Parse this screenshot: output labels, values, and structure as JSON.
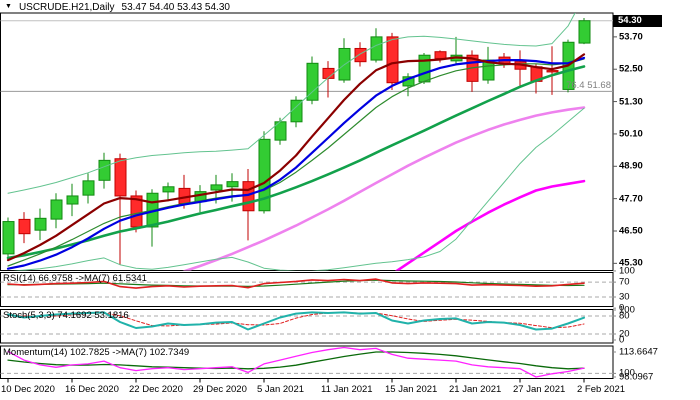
{
  "title": {
    "triangle_icon": "▼",
    "symbol_timeframe": "USCRUDE.H21,Daily",
    "ohlc_text": "53.47 54.40 53.43 54.30"
  },
  "colors": {
    "background": "#ffffff",
    "border": "#000000",
    "bull_fill": "#33cc33",
    "bull_stroke": "#128a12",
    "bear_fill": "#ff2a2a",
    "bear_stroke": "#c00000",
    "bb_band": "#63c38f",
    "bb_middle": "#2e8b2e",
    "ma_fast": "#8b0000",
    "ma_mid": "#0000e0",
    "ma_slow": "#12a14b",
    "ma_violet": "#ee82ee",
    "ma_magenta": "#ff00ff",
    "rsi_line": "#e02020",
    "rsi_ma": "#1a7a1a",
    "stoch_k": "#20b2aa",
    "stoch_d": "#e02020",
    "mom_line": "#ff22ff",
    "mom_ma": "#0a6a0a",
    "level_dash": "#aaaaaa",
    "fib_line": "#999999",
    "price_line": "#c0c0c0",
    "current_tag_bg": "#000000",
    "current_tag_text": "#ffffff"
  },
  "chart_data": {
    "type": "candlestick",
    "symbol": "USCRUDE.H21",
    "timeframe": "Daily",
    "title_ohlc": {
      "open": 53.47,
      "high": 54.4,
      "low": 53.43,
      "close": 54.3
    },
    "ylim": [
      45.05,
      54.6
    ],
    "dates": [
      "10 Dec 2020",
      "11 Dec 2020",
      "14 Dec 2020",
      "15 Dec 2020",
      "16 Dec 2020",
      "17 Dec 2020",
      "18 Dec 2020",
      "21 Dec 2020",
      "22 Dec 2020",
      "23 Dec 2020",
      "24 Dec 2020",
      "28 Dec 2020",
      "29 Dec 2020",
      "30 Dec 2020",
      "31 Dec 2020",
      "4 Jan 2021",
      "5 Jan 2021",
      "6 Jan 2021",
      "7 Jan 2021",
      "8 Jan 2021",
      "11 Jan 2021",
      "12 Jan 2021",
      "13 Jan 2021",
      "14 Jan 2021",
      "15 Jan 2021",
      "18 Jan 2021",
      "19 Jan 2021",
      "20 Jan 2021",
      "21 Jan 2021",
      "22 Jan 2021",
      "25 Jan 2021",
      "26 Jan 2021",
      "27 Jan 2021",
      "28 Jan 2021",
      "29 Jan 2021",
      "1 Feb 2021",
      "2 Feb 2021"
    ],
    "open": [
      45.65,
      46.93,
      46.53,
      46.94,
      47.5,
      47.83,
      48.38,
      49.18,
      47.8,
      46.65,
      47.95,
      48.08,
      47.59,
      48.02,
      48.14,
      48.33,
      47.25,
      49.87,
      50.55,
      51.35,
      52.53,
      52.1,
      53.27,
      52.84,
      53.7,
      51.88,
      52.03,
      53.15,
      52.81,
      53.02,
      52.1,
      52.95,
      52.78,
      52.59,
      52.45,
      51.75,
      53.47
    ],
    "high": [
      47.0,
      47.2,
      47.33,
      47.9,
      48.25,
      48.64,
      49.4,
      49.37,
      48.0,
      48.05,
      48.3,
      48.58,
      48.2,
      48.58,
      48.64,
      48.8,
      50.2,
      50.7,
      51.5,
      52.97,
      52.8,
      53.65,
      53.5,
      54.02,
      53.85,
      52.35,
      53.1,
      53.2,
      53.7,
      53.2,
      53.33,
      53.1,
      53.2,
      52.7,
      53.35,
      53.6,
      54.4
    ],
    "low": [
      45.4,
      46.05,
      46.16,
      46.6,
      47.05,
      47.52,
      48.07,
      45.25,
      46.45,
      45.92,
      47.6,
      47.33,
      47.2,
      47.52,
      47.59,
      46.15,
      47.15,
      49.7,
      50.35,
      51.2,
      51.45,
      52.0,
      52.6,
      52.75,
      51.73,
      51.5,
      51.95,
      52.75,
      52.7,
      51.66,
      51.96,
      52.55,
      51.85,
      51.6,
      51.55,
      51.64,
      53.43
    ],
    "close": [
      46.85,
      46.4,
      46.97,
      47.65,
      47.8,
      48.36,
      49.12,
      47.8,
      46.65,
      47.9,
      48.14,
      47.52,
      47.96,
      48.21,
      48.33,
      47.25,
      49.9,
      50.55,
      51.35,
      52.72,
      52.16,
      53.27,
      52.78,
      53.7,
      52.0,
      52.22,
      53.02,
      52.9,
      53.02,
      52.05,
      52.84,
      52.7,
      52.5,
      52.05,
      52.4,
      53.5,
      54.3
    ],
    "overlays": {
      "bollinger_upper": [
        47.9,
        48.02,
        48.15,
        48.3,
        48.48,
        48.66,
        48.88,
        49.1,
        49.22,
        49.3,
        49.35,
        49.4,
        49.44,
        49.46,
        49.5,
        49.55,
        50.05,
        50.55,
        51.1,
        51.65,
        52.18,
        52.66,
        53.06,
        53.38,
        53.6,
        53.7,
        53.72,
        53.68,
        53.62,
        53.55,
        53.48,
        53.42,
        53.38,
        53.36,
        53.45,
        54.1,
        55.2
      ],
      "bollinger_middle": [
        45.2,
        45.42,
        45.65,
        45.9,
        46.18,
        46.48,
        46.78,
        47.02,
        47.15,
        47.26,
        47.4,
        47.52,
        47.62,
        47.72,
        47.8,
        47.85,
        48.0,
        48.3,
        48.68,
        49.12,
        49.58,
        50.08,
        50.58,
        51.08,
        51.48,
        51.8,
        52.05,
        52.26,
        52.44,
        52.55,
        52.62,
        52.66,
        52.7,
        52.7,
        52.66,
        52.72,
        52.88
      ],
      "bollinger_lower": [
        45.0,
        45.05,
        45.1,
        45.18,
        45.28,
        45.4,
        45.5,
        45.25,
        45.12,
        45.08,
        45.15,
        45.25,
        45.35,
        45.45,
        45.52,
        45.35,
        45.12,
        45.05,
        45.02,
        45.02,
        45.06,
        45.14,
        45.22,
        45.3,
        45.36,
        45.44,
        45.54,
        45.74,
        46.2,
        46.9,
        47.6,
        48.3,
        49.0,
        49.6,
        50.05,
        50.55,
        51.05
      ],
      "ma_fast_darkred": [
        45.42,
        45.68,
        45.98,
        46.32,
        46.72,
        47.12,
        47.52,
        47.72,
        47.68,
        47.56,
        47.64,
        47.74,
        47.84,
        47.94,
        48.04,
        48.02,
        48.28,
        48.74,
        49.3,
        50.0,
        50.68,
        51.36,
        51.96,
        52.46,
        52.72,
        52.8,
        52.82,
        52.86,
        52.94,
        52.9,
        52.76,
        52.7,
        52.68,
        52.58,
        52.5,
        52.64,
        53.05
      ],
      "ma_blue": [
        45.1,
        45.22,
        45.4,
        45.62,
        45.9,
        46.22,
        46.58,
        46.88,
        47.08,
        47.22,
        47.36,
        47.48,
        47.58,
        47.68,
        47.78,
        47.84,
        48.04,
        48.4,
        48.85,
        49.4,
        49.95,
        50.5,
        51.02,
        51.52,
        51.88,
        52.14,
        52.35,
        52.55,
        52.68,
        52.75,
        52.8,
        52.84,
        52.84,
        52.8,
        52.72,
        52.72,
        52.92
      ],
      "ma_slow_green": [
        45.5,
        45.6,
        45.72,
        45.85,
        46.0,
        46.15,
        46.32,
        46.48,
        46.6,
        46.72,
        46.85,
        47.0,
        47.15,
        47.28,
        47.42,
        47.55,
        47.7,
        47.9,
        48.12,
        48.35,
        48.6,
        48.85,
        49.12,
        49.4,
        49.68,
        49.95,
        50.22,
        50.5,
        50.78,
        51.05,
        51.32,
        51.58,
        51.85,
        52.08,
        52.28,
        52.45,
        52.6
      ],
      "ma_violet": [
        null,
        null,
        null,
        null,
        null,
        null,
        null,
        null,
        null,
        44.65,
        44.82,
        45.0,
        45.2,
        45.42,
        45.65,
        45.9,
        46.15,
        46.42,
        46.7,
        47.0,
        47.3,
        47.62,
        47.95,
        48.28,
        48.6,
        48.92,
        49.22,
        49.5,
        49.78,
        50.02,
        50.25,
        50.45,
        50.62,
        50.78,
        50.9,
        51.0,
        51.08
      ],
      "ma_magenta": [
        null,
        null,
        null,
        null,
        null,
        null,
        null,
        null,
        null,
        null,
        null,
        null,
        null,
        null,
        null,
        null,
        null,
        null,
        null,
        null,
        null,
        null,
        null,
        null,
        44.9,
        45.3,
        45.7,
        46.1,
        46.5,
        46.85,
        47.18,
        47.48,
        47.75,
        48.0,
        48.15,
        48.25,
        48.35
      ]
    },
    "price_axis": {
      "ticks": [
        "53.70",
        "52.50",
        "51.30",
        "50.10",
        "48.90",
        "47.70",
        "46.50",
        "45.30"
      ],
      "tick_values": [
        53.7,
        52.5,
        51.3,
        50.1,
        48.9,
        47.7,
        46.5,
        45.3
      ],
      "current_label": "54.30",
      "current_value": 54.3
    },
    "fib_level": {
      "label": "76.4 51.68",
      "value": 51.68
    },
    "x_ticks": [
      {
        "label": "10 Dec 2020",
        "index": 0
      },
      {
        "label": "16 Dec 2020",
        "index": 4
      },
      {
        "label": "22 Dec 2020",
        "index": 8
      },
      {
        "label": "29 Dec 2020",
        "index": 12
      },
      {
        "label": "5 Jan 2021",
        "index": 16
      },
      {
        "label": "11 Jan 2021",
        "index": 20
      },
      {
        "label": "15 Jan 2021",
        "index": 24
      },
      {
        "label": "21 Jan 2021",
        "index": 28
      },
      {
        "label": "27 Jan 2021",
        "index": 32
      },
      {
        "label": "2 Feb 2021",
        "index": 36
      }
    ],
    "indicators": {
      "rsi": {
        "label": "RSI(14) 66.9758  ->MA(7) 61.5341",
        "current": 66.9758,
        "ma_current": 61.5341,
        "levels": [
          70,
          30
        ],
        "scale_labels": [
          {
            "text": "100",
            "value": 100
          },
          {
            "text": "70",
            "value": 70
          },
          {
            "text": "30",
            "value": 30
          },
          {
            "text": "0",
            "value": 0
          }
        ],
        "line": [
          65,
          62,
          64,
          66,
          67,
          69,
          72,
          58,
          54,
          58,
          60,
          57,
          59,
          60,
          61,
          55,
          66,
          69,
          72,
          76,
          74,
          77,
          74,
          78,
          68,
          66,
          68,
          67,
          66,
          62,
          63,
          62,
          61,
          59,
          60,
          64,
          66.98
        ],
        "ma": [
          63,
          63.2,
          63.8,
          64.4,
          65.2,
          66,
          67,
          65.5,
          63.5,
          62,
          61.2,
          60.2,
          59.6,
          59.2,
          59.2,
          58.6,
          59.6,
          61.8,
          64.4,
          67.4,
          70,
          72.6,
          74,
          75.4,
          74.2,
          73,
          72.4,
          71.6,
          70.4,
          68.2,
          66.4,
          65,
          63.8,
          62.6,
          61.4,
          61,
          61.53
        ]
      },
      "stoch": {
        "label": "Stoch(5,3,3) 74.1692 53.1816",
        "k_current": 74.1692,
        "d_current": 53.1816,
        "levels": [
          80,
          20
        ],
        "scale_labels": [
          {
            "text": "100",
            "value": 100
          },
          {
            "text": "80",
            "value": 80
          },
          {
            "text": "20",
            "value": 20
          },
          {
            "text": "0",
            "value": 0
          }
        ],
        "k": [
          85,
          75,
          80,
          85,
          88,
          90,
          92,
          60,
          40,
          45,
          55,
          50,
          52,
          58,
          60,
          35,
          55,
          75,
          88,
          92,
          90,
          92,
          88,
          90,
          65,
          55,
          65,
          70,
          72,
          55,
          60,
          58,
          50,
          35,
          38,
          55,
          74.17
        ],
        "d": [
          82,
          80,
          80,
          80,
          84,
          88,
          90,
          81,
          64,
          48,
          47,
          50,
          52,
          53,
          57,
          51,
          50,
          55,
          73,
          85,
          90,
          91,
          90,
          90,
          81,
          70,
          62,
          66,
          69,
          66,
          62,
          58,
          56,
          48,
          41,
          43,
          53.18
        ]
      },
      "momentum": {
        "label": "Momentum(14) 102.7825  ->MA(7) 102.7349",
        "current": 102.7825,
        "ma_current": 102.7349,
        "levels": [
          100
        ],
        "ylim": [
          98.0967,
          113.6647
        ],
        "scale_labels": [
          {
            "text": "113.6647",
            "value": 113.6647
          },
          {
            "text": "100",
            "value": 100
          },
          {
            "text": "98.0967",
            "value": 98.0967
          }
        ],
        "line": [
          111.5,
          107,
          104.5,
          103.2,
          104.5,
          105,
          106.5,
          103,
          101.5,
          102.5,
          103,
          102,
          102.5,
          103,
          103.5,
          100.5,
          105,
          107,
          109,
          111,
          112.5,
          113.66,
          112.5,
          113.2,
          110,
          108,
          107.5,
          107,
          106.5,
          104.5,
          103.5,
          103,
          102.5,
          98.1,
          99.8,
          101,
          102.78
        ],
        "ma": [
          107,
          106,
          105.2,
          104.6,
          104.4,
          104.4,
          104.7,
          104.5,
          104,
          103.5,
          103.3,
          103,
          102.8,
          102.6,
          102.8,
          102.4,
          102.7,
          103.3,
          104.3,
          105.9,
          107.4,
          108.9,
          110.2,
          111.3,
          111.3,
          111,
          110.6,
          110,
          109.3,
          108.2,
          107.1,
          106.1,
          105.2,
          104,
          103,
          102.4,
          102.73
        ]
      }
    }
  }
}
